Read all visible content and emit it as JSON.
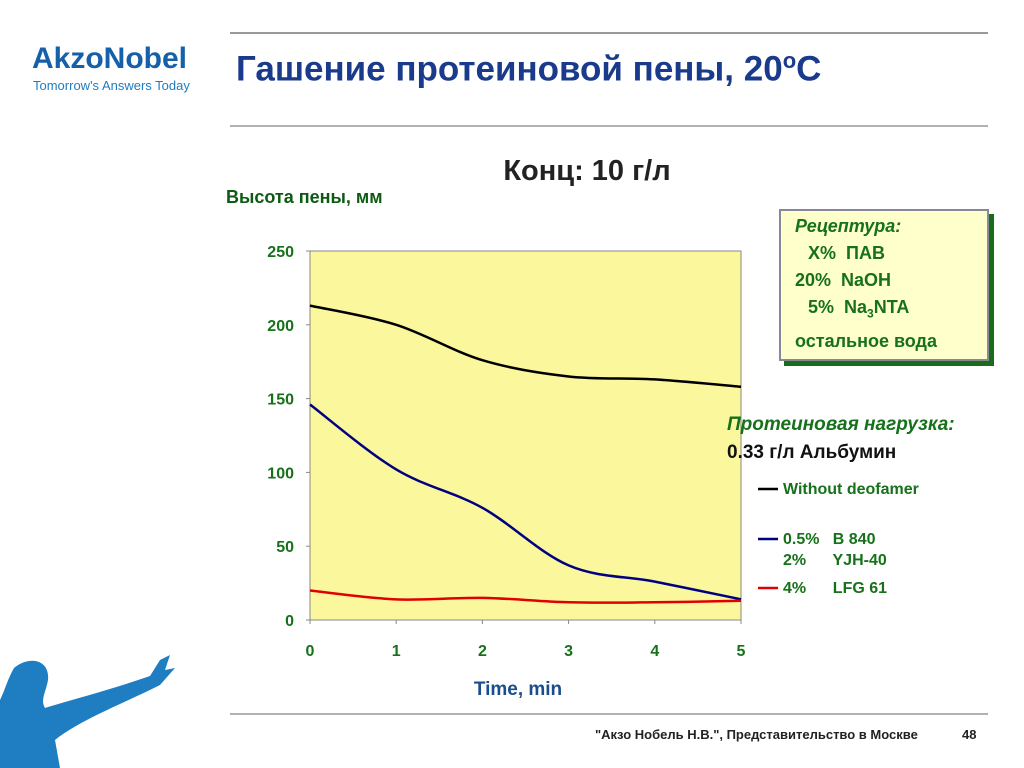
{
  "logo": {
    "name": "AkzoNobel",
    "tagline": "Tomorrow's Answers Today"
  },
  "slide_title": {
    "text": "Гашение протеиновой пены, 20",
    "sup": "o",
    "post": "C"
  },
  "recipe": {
    "heading": "Рецептура:",
    "lines": [
      "X%  ПАВ",
      "20%  NaOH",
      {
        "pre": "5%  Na",
        "sub": "3",
        "post": "NTA"
      },
      "остальное вода"
    ]
  },
  "annotation": {
    "heading": "Протеиновая нагрузка:",
    "text": "0.33 г/л Альбумин"
  },
  "footer": {
    "text": "\"Акзо Нобель Н.В.\", Представительство в Москве",
    "page": "48"
  },
  "chart_data": {
    "type": "line",
    "title": "Конц: 10 г/л",
    "y_label": "Высота пены, мм",
    "x_label": "Time, min",
    "x": [
      0,
      1,
      2,
      3,
      4,
      5
    ],
    "series": [
      {
        "name": "Without deofamer",
        "color": "#000000",
        "values": [
          213,
          200,
          176,
          165,
          163,
          158
        ]
      },
      {
        "name": "0.5%   B 840\n2%      YJH-40",
        "color": "#000080",
        "values": [
          146,
          102,
          76,
          37,
          26,
          14
        ]
      },
      {
        "name": "4%      LFG 61",
        "color": "#e00000",
        "values": [
          20,
          14,
          15,
          12,
          12,
          13
        ]
      }
    ],
    "xlim": [
      0,
      5
    ],
    "xticks": [
      0,
      1,
      2,
      3,
      4,
      5
    ],
    "ylim": [
      0,
      250
    ],
    "yticks": [
      0,
      50,
      100,
      150,
      200,
      250
    ],
    "plot_background": "#fbf79c",
    "grid": false
  }
}
